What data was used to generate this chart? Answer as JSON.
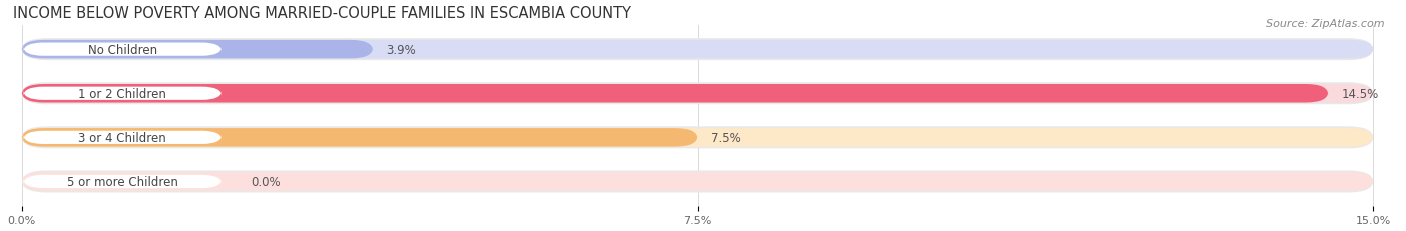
{
  "title": "INCOME BELOW POVERTY AMONG MARRIED-COUPLE FAMILIES IN ESCAMBIA COUNTY",
  "source": "Source: ZipAtlas.com",
  "categories": [
    "No Children",
    "1 or 2 Children",
    "3 or 4 Children",
    "5 or more Children"
  ],
  "values": [
    3.9,
    14.5,
    7.5,
    0.0
  ],
  "bar_colors": [
    "#aab4e8",
    "#f0607a",
    "#f5b870",
    "#f09898"
  ],
  "bar_bg_colors": [
    "#d8dcf5",
    "#fadadd",
    "#fde8c8",
    "#fde0de"
  ],
  "label_text_color": "#444444",
  "bar_bg_outer": "#e8e8e8",
  "xlim": [
    0,
    15.0
  ],
  "xticks": [
    0.0,
    7.5,
    15.0
  ],
  "xtick_labels": [
    "0.0%",
    "7.5%",
    "15.0%"
  ],
  "title_fontsize": 10.5,
  "source_fontsize": 8,
  "label_fontsize": 8.5,
  "value_fontsize": 8.5,
  "bar_height": 0.42,
  "figsize": [
    14.06,
    2.32
  ],
  "dpi": 100
}
